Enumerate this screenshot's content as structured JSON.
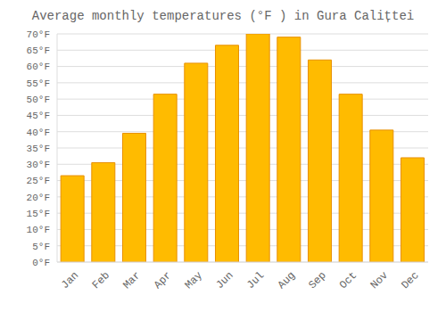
{
  "chart_data": {
    "type": "bar",
    "title": "Average monthly temperatures (°F ) in Gura Calițtei",
    "categories": [
      "Jan",
      "Feb",
      "Mar",
      "Apr",
      "May",
      "Jun",
      "Jul",
      "Aug",
      "Sep",
      "Oct",
      "Nov",
      "Dec"
    ],
    "values": [
      26.5,
      30.5,
      39.5,
      51.5,
      61.0,
      66.5,
      70.0,
      69.0,
      62.0,
      51.5,
      40.5,
      32.0
    ],
    "color": "#FFBB00",
    "ylim": [
      0,
      70
    ],
    "yticks": [
      {
        "value": 0,
        "label": "0°F"
      },
      {
        "value": 5,
        "label": "5°F"
      },
      {
        "value": 10,
        "label": "10°F"
      },
      {
        "value": 15,
        "label": "15°F"
      },
      {
        "value": 20,
        "label": "20°F"
      },
      {
        "value": 25,
        "label": "25°F"
      },
      {
        "value": 30,
        "label": "30°F"
      },
      {
        "value": 35,
        "label": "35°F"
      },
      {
        "value": 40,
        "label": "40°F"
      },
      {
        "value": 45,
        "label": "45°F"
      },
      {
        "value": 50,
        "label": "50°F"
      },
      {
        "value": 55,
        "label": "55°F"
      },
      {
        "value": 60,
        "label": "60°F"
      },
      {
        "value": 65,
        "label": "65°F"
      },
      {
        "value": 70,
        "label": "70°F"
      }
    ],
    "grid": true
  }
}
